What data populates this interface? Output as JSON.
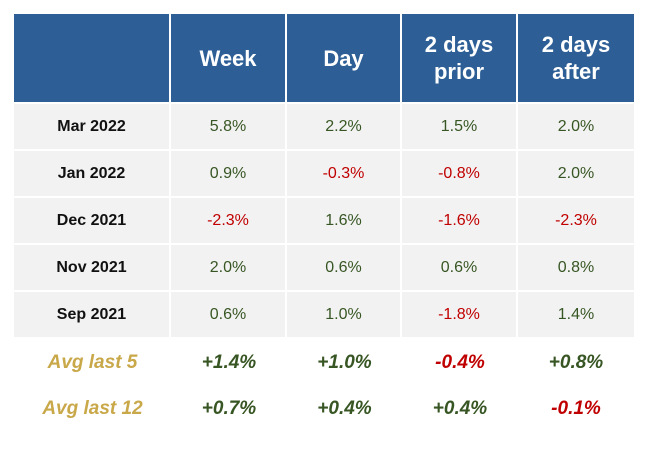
{
  "header": {
    "corner": "",
    "columns": [
      "Week",
      "Day",
      "2 days\nprior",
      "2 days\nafter"
    ]
  },
  "rows": [
    {
      "label": "Mar 2022",
      "values": [
        "5.8%",
        "2.2%",
        "1.5%",
        "2.0%"
      ],
      "signs": [
        "pos",
        "pos",
        "pos",
        "pos"
      ]
    },
    {
      "label": "Jan 2022",
      "values": [
        "0.9%",
        "-0.3%",
        "-0.8%",
        "2.0%"
      ],
      "signs": [
        "pos",
        "neg",
        "neg",
        "pos"
      ]
    },
    {
      "label": "Dec 2021",
      "values": [
        "-2.3%",
        "1.6%",
        "-1.6%",
        "-2.3%"
      ],
      "signs": [
        "neg",
        "pos",
        "neg",
        "neg"
      ]
    },
    {
      "label": "Nov 2021",
      "values": [
        "2.0%",
        "0.6%",
        "0.6%",
        "0.8%"
      ],
      "signs": [
        "pos",
        "pos",
        "pos",
        "pos"
      ]
    },
    {
      "label": "Sep 2021",
      "values": [
        "0.6%",
        "1.0%",
        "-1.8%",
        "1.4%"
      ],
      "signs": [
        "pos",
        "pos",
        "neg",
        "pos"
      ]
    }
  ],
  "averages": [
    {
      "label": "Avg last 5",
      "values": [
        "+1.4%",
        "+1.0%",
        "-0.4%",
        "+0.8%"
      ],
      "signs": [
        "pos",
        "pos",
        "neg",
        "pos"
      ]
    },
    {
      "label": "Avg last 12",
      "values": [
        "+0.7%",
        "+0.4%",
        "+0.4%",
        "-0.1%"
      ],
      "signs": [
        "pos",
        "pos",
        "pos",
        "neg"
      ]
    }
  ],
  "colors": {
    "header_bg": "#2d5f96",
    "row_bg": "#f2f2f2",
    "positive": "#375623",
    "negative": "#c00000",
    "avg_label": "#c9a84a"
  }
}
